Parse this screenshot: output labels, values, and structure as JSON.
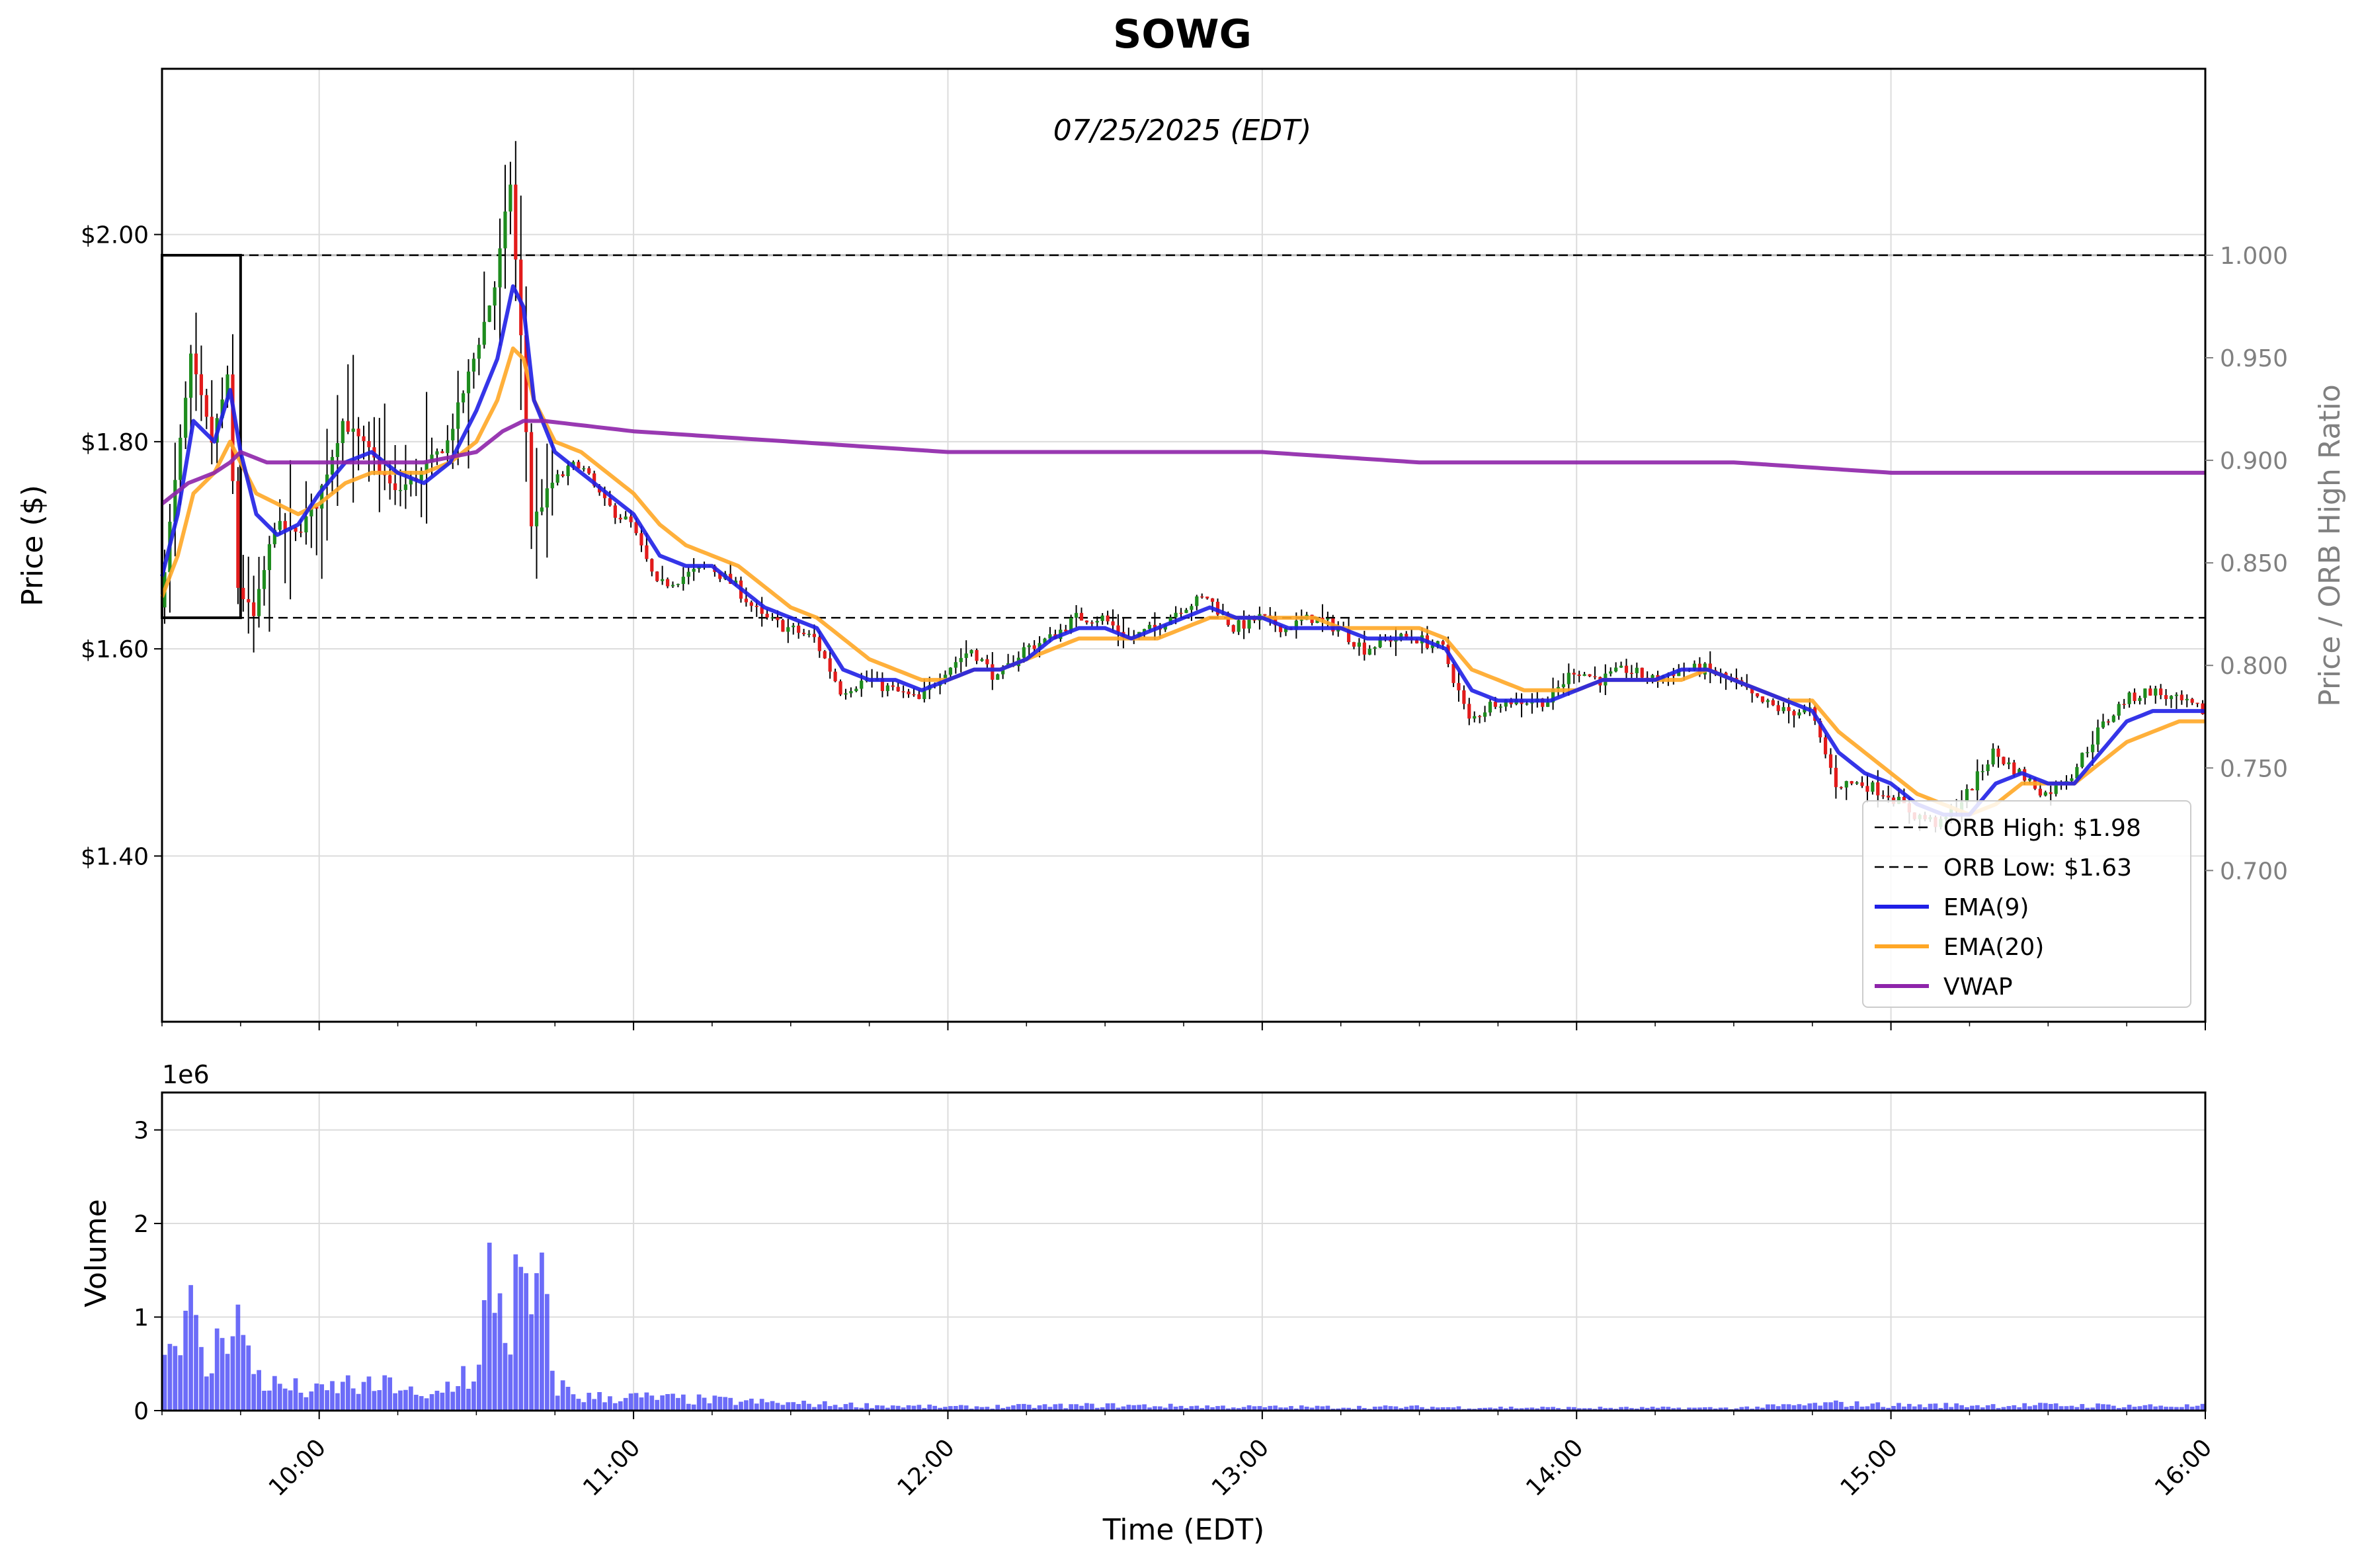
{
  "chart_data": {
    "type": "candlestick",
    "title": "SOWG",
    "subtitle": "07/25/2025 (EDT)",
    "price_panel": {
      "ylabel": "Price ($)",
      "ylim": [
        1.24,
        2.16
      ],
      "yticks": [
        "$1.40",
        "$1.60",
        "$1.80",
        "$2.00"
      ],
      "ytick_values": [
        1.4,
        1.6,
        1.8,
        2.0
      ],
      "right_axis": {
        "label": "Price / ORB High Ratio",
        "yticks": [
          "0.700",
          "0.750",
          "0.800",
          "0.850",
          "0.900",
          "0.950",
          "1.000"
        ],
        "ytick_values": [
          0.7,
          0.75,
          0.8,
          0.85,
          0.9,
          0.95,
          1.0
        ],
        "reference_line": 1.0
      },
      "orb_high": 1.98,
      "orb_low": 1.63,
      "orb_window": [
        "09:30",
        "09:45"
      ],
      "legend": [
        {
          "label": "ORB High: $1.98",
          "style": "dashed",
          "color": "#000000"
        },
        {
          "label": "ORB Low: $1.63",
          "style": "dashed",
          "color": "#000000"
        },
        {
          "label": "EMA(9)",
          "style": "solid",
          "color": "#1f1fe6"
        },
        {
          "label": "EMA(20)",
          "style": "solid",
          "color": "#ffa726"
        },
        {
          "label": "VWAP",
          "style": "solid",
          "color": "#8e24aa"
        }
      ],
      "legend_placement": "lower-right",
      "grid": true
    },
    "x": {
      "label": "Time (EDT)",
      "range": [
        "09:30",
        "16:00"
      ],
      "ticks": [
        "10:00",
        "11:00",
        "12:00",
        "13:00",
        "14:00",
        "15:00",
        "16:00"
      ]
    },
    "series_keypoints": {
      "close": [
        [
          "09:30",
          1.64
        ],
        [
          "09:33",
          1.76
        ],
        [
          "09:36",
          1.88
        ],
        [
          "09:40",
          1.8
        ],
        [
          "09:43",
          1.86
        ],
        [
          "09:45",
          1.66
        ],
        [
          "09:48",
          1.63
        ],
        [
          "09:52",
          1.72
        ],
        [
          "09:56",
          1.71
        ],
        [
          "10:00",
          1.74
        ],
        [
          "10:05",
          1.82
        ],
        [
          "10:10",
          1.79
        ],
        [
          "10:15",
          1.75
        ],
        [
          "10:20",
          1.77
        ],
        [
          "10:25",
          1.8
        ],
        [
          "10:30",
          1.88
        ],
        [
          "10:34",
          1.95
        ],
        [
          "10:37",
          2.05
        ],
        [
          "10:39",
          1.9
        ],
        [
          "10:41",
          1.72
        ],
        [
          "10:45",
          1.76
        ],
        [
          "10:50",
          1.78
        ],
        [
          "10:55",
          1.74
        ],
        [
          "11:00",
          1.72
        ],
        [
          "11:05",
          1.66
        ],
        [
          "11:10",
          1.67
        ],
        [
          "11:15",
          1.68
        ],
        [
          "11:20",
          1.66
        ],
        [
          "11:25",
          1.63
        ],
        [
          "11:30",
          1.62
        ],
        [
          "11:35",
          1.61
        ],
        [
          "11:40",
          1.56
        ],
        [
          "11:45",
          1.57
        ],
        [
          "11:50",
          1.56
        ],
        [
          "11:55",
          1.55
        ],
        [
          "12:00",
          1.58
        ],
        [
          "12:05",
          1.6
        ],
        [
          "12:10",
          1.57
        ],
        [
          "12:15",
          1.6
        ],
        [
          "12:20",
          1.61
        ],
        [
          "12:25",
          1.63
        ],
        [
          "12:30",
          1.63
        ],
        [
          "12:35",
          1.61
        ],
        [
          "12:40",
          1.62
        ],
        [
          "12:45",
          1.64
        ],
        [
          "12:50",
          1.65
        ],
        [
          "12:55",
          1.62
        ],
        [
          "13:00",
          1.63
        ],
        [
          "13:05",
          1.62
        ],
        [
          "13:10",
          1.63
        ],
        [
          "13:15",
          1.62
        ],
        [
          "13:20",
          1.6
        ],
        [
          "13:25",
          1.61
        ],
        [
          "13:30",
          1.61
        ],
        [
          "13:35",
          1.6
        ],
        [
          "13:40",
          1.53
        ],
        [
          "13:45",
          1.55
        ],
        [
          "13:50",
          1.55
        ],
        [
          "13:55",
          1.55
        ],
        [
          "14:00",
          1.58
        ],
        [
          "14:05",
          1.57
        ],
        [
          "14:10",
          1.58
        ],
        [
          "14:15",
          1.57
        ],
        [
          "14:20",
          1.58
        ],
        [
          "14:25",
          1.58
        ],
        [
          "14:30",
          1.57
        ],
        [
          "14:35",
          1.55
        ],
        [
          "14:40",
          1.54
        ],
        [
          "14:45",
          1.54
        ],
        [
          "14:50",
          1.47
        ],
        [
          "14:55",
          1.47
        ],
        [
          "15:00",
          1.46
        ],
        [
          "15:05",
          1.44
        ],
        [
          "15:10",
          1.43
        ],
        [
          "15:15",
          1.46
        ],
        [
          "15:20",
          1.5
        ],
        [
          "15:25",
          1.48
        ],
        [
          "15:30",
          1.46
        ],
        [
          "15:35",
          1.48
        ],
        [
          "15:40",
          1.52
        ],
        [
          "15:45",
          1.55
        ],
        [
          "15:50",
          1.56
        ],
        [
          "15:55",
          1.55
        ],
        [
          "16:00",
          1.54
        ]
      ],
      "ema9": [
        [
          "09:30",
          1.67
        ],
        [
          "09:33",
          1.73
        ],
        [
          "09:36",
          1.82
        ],
        [
          "09:40",
          1.8
        ],
        [
          "09:43",
          1.85
        ],
        [
          "09:45",
          1.79
        ],
        [
          "09:48",
          1.73
        ],
        [
          "09:52",
          1.71
        ],
        [
          "09:56",
          1.72
        ],
        [
          "10:00",
          1.75
        ],
        [
          "10:05",
          1.78
        ],
        [
          "10:10",
          1.79
        ],
        [
          "10:15",
          1.77
        ],
        [
          "10:20",
          1.76
        ],
        [
          "10:25",
          1.78
        ],
        [
          "10:30",
          1.83
        ],
        [
          "10:34",
          1.88
        ],
        [
          "10:37",
          1.95
        ],
        [
          "10:39",
          1.93
        ],
        [
          "10:41",
          1.84
        ],
        [
          "10:45",
          1.79
        ],
        [
          "10:50",
          1.77
        ],
        [
          "10:55",
          1.75
        ],
        [
          "11:00",
          1.73
        ],
        [
          "11:05",
          1.69
        ],
        [
          "11:10",
          1.68
        ],
        [
          "11:15",
          1.68
        ],
        [
          "11:20",
          1.66
        ],
        [
          "11:25",
          1.64
        ],
        [
          "11:30",
          1.63
        ],
        [
          "11:35",
          1.62
        ],
        [
          "11:40",
          1.58
        ],
        [
          "11:45",
          1.57
        ],
        [
          "11:50",
          1.57
        ],
        [
          "11:55",
          1.56
        ],
        [
          "12:00",
          1.57
        ],
        [
          "12:05",
          1.58
        ],
        [
          "12:10",
          1.58
        ],
        [
          "12:15",
          1.59
        ],
        [
          "12:20",
          1.61
        ],
        [
          "12:25",
          1.62
        ],
        [
          "12:30",
          1.62
        ],
        [
          "12:35",
          1.61
        ],
        [
          "12:40",
          1.62
        ],
        [
          "12:45",
          1.63
        ],
        [
          "12:50",
          1.64
        ],
        [
          "12:55",
          1.63
        ],
        [
          "13:00",
          1.63
        ],
        [
          "13:05",
          1.62
        ],
        [
          "13:10",
          1.62
        ],
        [
          "13:15",
          1.62
        ],
        [
          "13:20",
          1.61
        ],
        [
          "13:25",
          1.61
        ],
        [
          "13:30",
          1.61
        ],
        [
          "13:35",
          1.6
        ],
        [
          "13:40",
          1.56
        ],
        [
          "13:45",
          1.55
        ],
        [
          "13:50",
          1.55
        ],
        [
          "13:55",
          1.55
        ],
        [
          "14:00",
          1.56
        ],
        [
          "14:05",
          1.57
        ],
        [
          "14:10",
          1.57
        ],
        [
          "14:15",
          1.57
        ],
        [
          "14:20",
          1.58
        ],
        [
          "14:25",
          1.58
        ],
        [
          "14:30",
          1.57
        ],
        [
          "14:35",
          1.56
        ],
        [
          "14:40",
          1.55
        ],
        [
          "14:45",
          1.54
        ],
        [
          "14:50",
          1.5
        ],
        [
          "14:55",
          1.48
        ],
        [
          "15:00",
          1.47
        ],
        [
          "15:05",
          1.45
        ],
        [
          "15:10",
          1.44
        ],
        [
          "15:15",
          1.44
        ],
        [
          "15:20",
          1.47
        ],
        [
          "15:25",
          1.48
        ],
        [
          "15:30",
          1.47
        ],
        [
          "15:35",
          1.47
        ],
        [
          "15:40",
          1.5
        ],
        [
          "15:45",
          1.53
        ],
        [
          "15:50",
          1.54
        ],
        [
          "15:55",
          1.54
        ],
        [
          "16:00",
          1.54
        ]
      ],
      "ema20": [
        [
          "09:30",
          1.65
        ],
        [
          "09:33",
          1.69
        ],
        [
          "09:36",
          1.75
        ],
        [
          "09:40",
          1.77
        ],
        [
          "09:43",
          1.8
        ],
        [
          "09:45",
          1.78
        ],
        [
          "09:48",
          1.75
        ],
        [
          "09:52",
          1.74
        ],
        [
          "09:56",
          1.73
        ],
        [
          "10:00",
          1.74
        ],
        [
          "10:05",
          1.76
        ],
        [
          "10:10",
          1.77
        ],
        [
          "10:15",
          1.77
        ],
        [
          "10:20",
          1.77
        ],
        [
          "10:25",
          1.78
        ],
        [
          "10:30",
          1.8
        ],
        [
          "10:34",
          1.84
        ],
        [
          "10:37",
          1.89
        ],
        [
          "10:39",
          1.88
        ],
        [
          "10:41",
          1.84
        ],
        [
          "10:45",
          1.8
        ],
        [
          "10:50",
          1.79
        ],
        [
          "10:55",
          1.77
        ],
        [
          "11:00",
          1.75
        ],
        [
          "11:05",
          1.72
        ],
        [
          "11:10",
          1.7
        ],
        [
          "11:15",
          1.69
        ],
        [
          "11:20",
          1.68
        ],
        [
          "11:25",
          1.66
        ],
        [
          "11:30",
          1.64
        ],
        [
          "11:35",
          1.63
        ],
        [
          "11:40",
          1.61
        ],
        [
          "11:45",
          1.59
        ],
        [
          "11:50",
          1.58
        ],
        [
          "11:55",
          1.57
        ],
        [
          "12:00",
          1.57
        ],
        [
          "12:05",
          1.58
        ],
        [
          "12:10",
          1.58
        ],
        [
          "12:15",
          1.59
        ],
        [
          "12:20",
          1.6
        ],
        [
          "12:25",
          1.61
        ],
        [
          "12:30",
          1.61
        ],
        [
          "12:35",
          1.61
        ],
        [
          "12:40",
          1.61
        ],
        [
          "12:45",
          1.62
        ],
        [
          "12:50",
          1.63
        ],
        [
          "12:55",
          1.63
        ],
        [
          "13:00",
          1.63
        ],
        [
          "13:05",
          1.63
        ],
        [
          "13:10",
          1.63
        ],
        [
          "13:15",
          1.62
        ],
        [
          "13:20",
          1.62
        ],
        [
          "13:25",
          1.62
        ],
        [
          "13:30",
          1.62
        ],
        [
          "13:35",
          1.61
        ],
        [
          "13:40",
          1.58
        ],
        [
          "13:45",
          1.57
        ],
        [
          "13:50",
          1.56
        ],
        [
          "13:55",
          1.56
        ],
        [
          "14:00",
          1.56
        ],
        [
          "14:05",
          1.57
        ],
        [
          "14:10",
          1.57
        ],
        [
          "14:15",
          1.57
        ],
        [
          "14:20",
          1.57
        ],
        [
          "14:25",
          1.58
        ],
        [
          "14:30",
          1.57
        ],
        [
          "14:35",
          1.56
        ],
        [
          "14:40",
          1.55
        ],
        [
          "14:45",
          1.55
        ],
        [
          "14:50",
          1.52
        ],
        [
          "14:55",
          1.5
        ],
        [
          "15:00",
          1.48
        ],
        [
          "15:05",
          1.46
        ],
        [
          "15:10",
          1.45
        ],
        [
          "15:15",
          1.44
        ],
        [
          "15:20",
          1.45
        ],
        [
          "15:25",
          1.47
        ],
        [
          "15:30",
          1.47
        ],
        [
          "15:35",
          1.47
        ],
        [
          "15:40",
          1.49
        ],
        [
          "15:45",
          1.51
        ],
        [
          "15:50",
          1.52
        ],
        [
          "15:55",
          1.53
        ],
        [
          "16:00",
          1.53
        ]
      ],
      "vwap": [
        [
          "09:30",
          1.74
        ],
        [
          "09:35",
          1.76
        ],
        [
          "09:40",
          1.77
        ],
        [
          "09:43",
          1.78
        ],
        [
          "09:45",
          1.79
        ],
        [
          "09:50",
          1.78
        ],
        [
          "10:00",
          1.78
        ],
        [
          "10:20",
          1.78
        ],
        [
          "10:30",
          1.79
        ],
        [
          "10:35",
          1.81
        ],
        [
          "10:39",
          1.82
        ],
        [
          "10:43",
          1.82
        ],
        [
          "11:00",
          1.81
        ],
        [
          "11:30",
          1.8
        ],
        [
          "12:00",
          1.79
        ],
        [
          "12:30",
          1.79
        ],
        [
          "13:00",
          1.79
        ],
        [
          "13:30",
          1.78
        ],
        [
          "14:00",
          1.78
        ],
        [
          "14:30",
          1.78
        ],
        [
          "15:00",
          1.77
        ],
        [
          "15:30",
          1.77
        ],
        [
          "16:00",
          1.77
        ]
      ]
    },
    "volume_panel": {
      "ylabel": "Volume",
      "scale_label": "1e6",
      "ylim": [
        0,
        3.4
      ],
      "yticks": [
        "0",
        "1",
        "2",
        "3"
      ],
      "ytick_values": [
        0,
        1,
        2,
        3
      ],
      "bar_color": "#3b3bf5",
      "volume_keypoints": [
        [
          "09:30",
          0.55
        ],
        [
          "09:32",
          0.8
        ],
        [
          "09:34",
          1.35
        ],
        [
          "09:36",
          0.95
        ],
        [
          "09:38",
          0.4
        ],
        [
          "09:40",
          0.55
        ],
        [
          "09:42",
          1.1
        ],
        [
          "09:44",
          1.2
        ],
        [
          "09:46",
          0.6
        ],
        [
          "09:50",
          0.3
        ],
        [
          "09:55",
          0.25
        ],
        [
          "10:00",
          0.2
        ],
        [
          "10:05",
          0.3
        ],
        [
          "10:10",
          0.25
        ],
        [
          "10:15",
          0.3
        ],
        [
          "10:20",
          0.1
        ],
        [
          "10:25",
          0.3
        ],
        [
          "10:28",
          0.45
        ],
        [
          "10:30",
          0.2
        ],
        [
          "10:33",
          1.7
        ],
        [
          "10:36",
          0.8
        ],
        [
          "10:38",
          1.45
        ],
        [
          "10:40",
          0.95
        ],
        [
          "10:42",
          1.5
        ],
        [
          "10:45",
          0.3
        ],
        [
          "10:50",
          0.15
        ],
        [
          "11:00",
          0.15
        ],
        [
          "11:30",
          0.08
        ],
        [
          "12:00",
          0.04
        ],
        [
          "12:30",
          0.06
        ],
        [
          "13:00",
          0.04
        ],
        [
          "13:30",
          0.04
        ],
        [
          "14:00",
          0.03
        ],
        [
          "14:30",
          0.03
        ],
        [
          "14:50",
          0.08
        ],
        [
          "15:00",
          0.06
        ],
        [
          "15:30",
          0.06
        ],
        [
          "16:00",
          0.05
        ]
      ]
    }
  }
}
